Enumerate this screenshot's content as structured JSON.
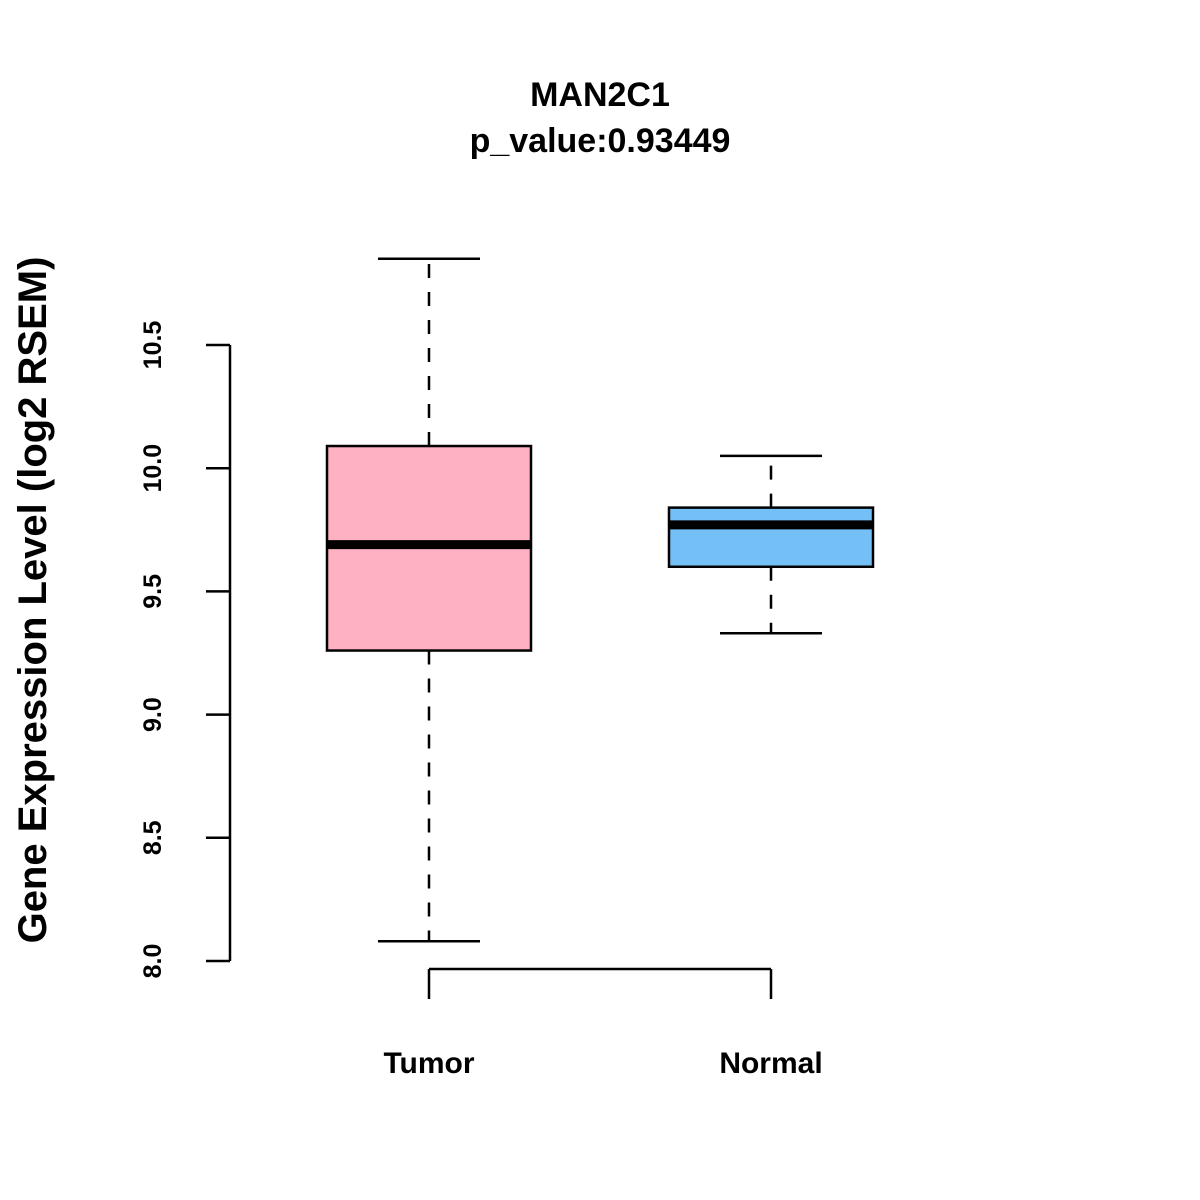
{
  "chart_data": {
    "type": "boxplot",
    "title": "MAN2C1",
    "subtitle": "p_value:0.93449",
    "ylabel": "Gene Expression Level (log2 RSEM)",
    "xlabel": "",
    "ylim": [
      8.0,
      10.5
    ],
    "yticks": [
      "8.0",
      "8.5",
      "9.0",
      "9.5",
      "10.0",
      "10.5"
    ],
    "grid": false,
    "categories": [
      "Tumor",
      "Normal"
    ],
    "series": [
      {
        "category": "Tumor",
        "color": "#FDB1C3",
        "whisker_low": 8.08,
        "q1": 9.26,
        "median": 9.69,
        "q3": 10.09,
        "whisker_high": 10.85
      },
      {
        "category": "Normal",
        "color": "#75BFF7",
        "whisker_low": 9.33,
        "q1": 9.6,
        "median": 9.77,
        "q3": 9.84,
        "whisker_high": 10.05
      }
    ]
  }
}
